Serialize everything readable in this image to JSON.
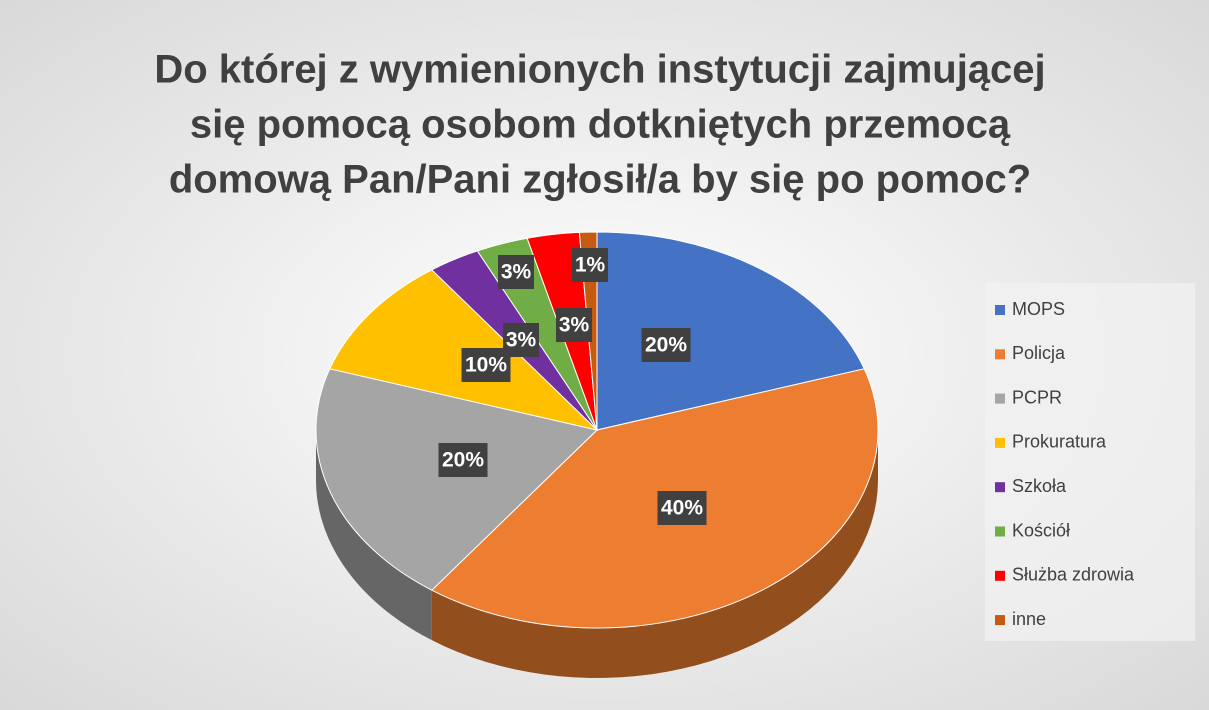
{
  "chart_data": {
    "type": "pie",
    "title": [
      "Do której z wymienionych instytucji zajmującej",
      "się pomocą osobom dotkniętych przemocą",
      "domową Pan/Pani zgłosił/a by się po pomoc?"
    ],
    "categories": [
      "MOPS",
      "Policja",
      "PCPR",
      "Prokuratura",
      "Szkoła",
      "Kościół",
      "Służba zdrowia",
      "inne"
    ],
    "values": [
      20,
      40,
      20,
      10,
      3,
      3,
      3,
      1
    ],
    "value_labels": [
      "20%",
      "40%",
      "20%",
      "10%",
      "3%",
      "3%",
      "3%",
      "1%"
    ],
    "colors": [
      "#4472c4",
      "#ed7d31",
      "#a5a5a5",
      "#ffc000",
      "#7030a0",
      "#70ad47",
      "#ff0000",
      "#c55a11"
    ],
    "legend": "right"
  }
}
